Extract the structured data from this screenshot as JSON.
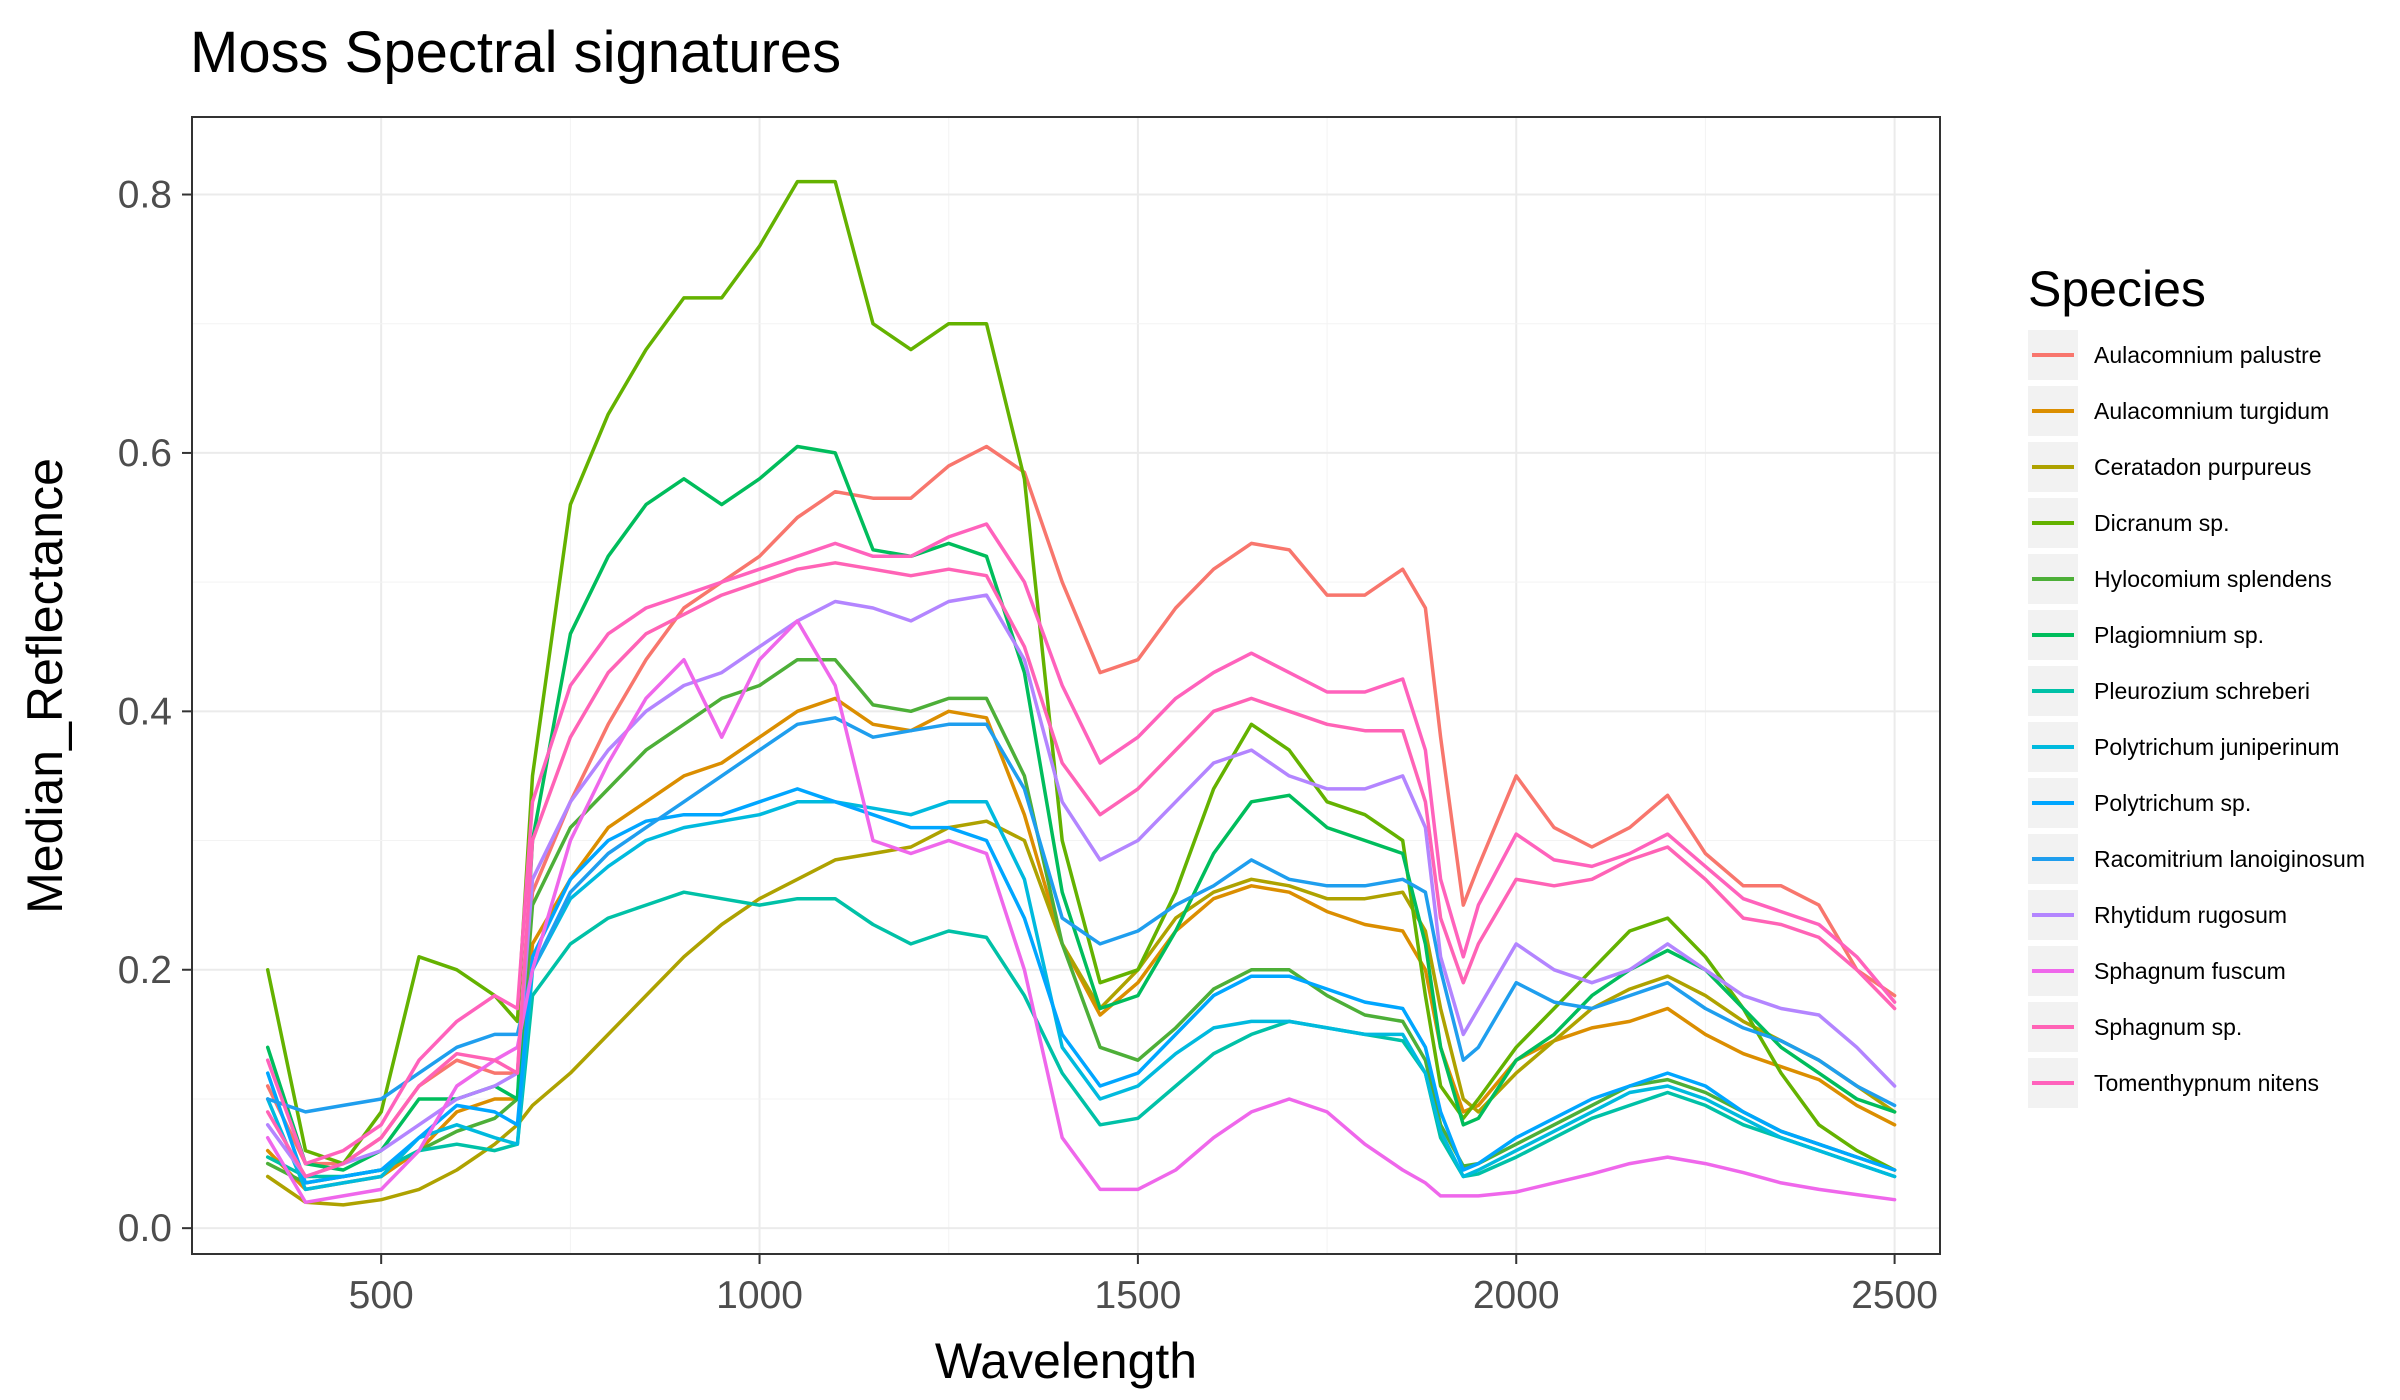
{
  "chart_data": {
    "type": "line",
    "title": "Moss Spectral signatures",
    "xlabel": "Wavelength",
    "ylabel": "Median_Reflectance",
    "xlim": [
      250,
      2560
    ],
    "ylim": [
      -0.02,
      0.86
    ],
    "x_ticks": [
      500,
      1000,
      1500,
      2000,
      2500
    ],
    "y_ticks": [
      0.0,
      0.2,
      0.4,
      0.6,
      0.8
    ],
    "x_tick_labels": [
      "500",
      "1000",
      "1500",
      "2000",
      "2500"
    ],
    "y_tick_labels": [
      "0.0",
      "0.2",
      "0.4",
      "0.6",
      "0.8"
    ],
    "grid": true,
    "legend": {
      "title": "Species",
      "position": "right"
    },
    "x": [
      350,
      400,
      450,
      500,
      550,
      600,
      650,
      680,
      700,
      750,
      800,
      850,
      900,
      950,
      1000,
      1050,
      1100,
      1150,
      1200,
      1250,
      1300,
      1350,
      1400,
      1450,
      1500,
      1550,
      1600,
      1650,
      1700,
      1750,
      1800,
      1850,
      1880,
      1900,
      1930,
      1950,
      2000,
      2050,
      2100,
      2150,
      2200,
      2250,
      2300,
      2350,
      2400,
      2450,
      2500
    ],
    "series": [
      {
        "name": "Aulacomnium palustre",
        "color": "#F8766D",
        "values": [
          0.11,
          0.05,
          0.05,
          0.07,
          0.11,
          0.13,
          0.12,
          0.12,
          0.26,
          0.33,
          0.39,
          0.44,
          0.48,
          0.5,
          0.52,
          0.55,
          0.57,
          0.565,
          0.565,
          0.59,
          0.605,
          0.585,
          0.5,
          0.43,
          0.44,
          0.48,
          0.51,
          0.53,
          0.525,
          0.49,
          0.49,
          0.51,
          0.48,
          0.38,
          0.25,
          0.28,
          0.35,
          0.31,
          0.295,
          0.31,
          0.335,
          0.29,
          0.265,
          0.265,
          0.25,
          0.2,
          0.18
        ]
      },
      {
        "name": "Aulacomnium turgidum",
        "color": "#DB8E00",
        "values": [
          0.06,
          0.03,
          0.035,
          0.04,
          0.06,
          0.09,
          0.1,
          0.1,
          0.22,
          0.27,
          0.31,
          0.33,
          0.35,
          0.36,
          0.38,
          0.4,
          0.41,
          0.39,
          0.385,
          0.4,
          0.395,
          0.32,
          0.22,
          0.165,
          0.19,
          0.23,
          0.255,
          0.265,
          0.26,
          0.245,
          0.235,
          0.23,
          0.2,
          0.14,
          0.09,
          0.095,
          0.13,
          0.145,
          0.155,
          0.16,
          0.17,
          0.15,
          0.135,
          0.125,
          0.115,
          0.095,
          0.08
        ]
      },
      {
        "name": "Ceratadon purpureus",
        "color": "#AEA200",
        "values": [
          0.04,
          0.02,
          0.018,
          0.022,
          0.03,
          0.045,
          0.065,
          0.08,
          0.095,
          0.12,
          0.15,
          0.18,
          0.21,
          0.235,
          0.255,
          0.27,
          0.285,
          0.29,
          0.295,
          0.31,
          0.315,
          0.3,
          0.22,
          0.17,
          0.2,
          0.24,
          0.26,
          0.27,
          0.265,
          0.255,
          0.255,
          0.26,
          0.23,
          0.17,
          0.1,
          0.09,
          0.12,
          0.145,
          0.17,
          0.185,
          0.195,
          0.18,
          0.16,
          0.145,
          0.13,
          0.11,
          0.09
        ]
      },
      {
        "name": "Dicranum sp.",
        "color": "#64B200",
        "values": [
          0.2,
          0.06,
          0.05,
          0.09,
          0.21,
          0.2,
          0.18,
          0.16,
          0.35,
          0.56,
          0.63,
          0.68,
          0.72,
          0.72,
          0.76,
          0.81,
          0.81,
          0.7,
          0.68,
          0.7,
          0.7,
          0.58,
          0.3,
          0.19,
          0.2,
          0.26,
          0.34,
          0.39,
          0.37,
          0.33,
          0.32,
          0.3,
          0.18,
          0.11,
          0.085,
          0.1,
          0.14,
          0.17,
          0.2,
          0.23,
          0.24,
          0.21,
          0.17,
          0.12,
          0.08,
          0.06,
          0.045
        ]
      },
      {
        "name": "Hylocomium splendens",
        "color": "#4DAF38",
        "values": [
          0.05,
          0.035,
          0.04,
          0.045,
          0.06,
          0.075,
          0.085,
          0.1,
          0.25,
          0.31,
          0.34,
          0.37,
          0.39,
          0.41,
          0.42,
          0.44,
          0.44,
          0.405,
          0.4,
          0.41,
          0.41,
          0.35,
          0.22,
          0.14,
          0.13,
          0.155,
          0.185,
          0.2,
          0.2,
          0.18,
          0.165,
          0.16,
          0.13,
          0.08,
          0.048,
          0.05,
          0.065,
          0.08,
          0.095,
          0.11,
          0.115,
          0.105,
          0.09,
          0.075,
          0.065,
          0.055,
          0.045
        ]
      },
      {
        "name": "Plagiomnium sp.",
        "color": "#00BD5C",
        "values": [
          0.14,
          0.05,
          0.045,
          0.06,
          0.1,
          0.1,
          0.11,
          0.1,
          0.3,
          0.46,
          0.52,
          0.56,
          0.58,
          0.56,
          0.58,
          0.605,
          0.6,
          0.525,
          0.52,
          0.53,
          0.52,
          0.43,
          0.26,
          0.17,
          0.18,
          0.23,
          0.29,
          0.33,
          0.335,
          0.31,
          0.3,
          0.29,
          0.22,
          0.14,
          0.08,
          0.085,
          0.13,
          0.15,
          0.18,
          0.2,
          0.215,
          0.2,
          0.17,
          0.14,
          0.12,
          0.1,
          0.09
        ]
      },
      {
        "name": "Pleurozium schreberi",
        "color": "#00C1A7",
        "values": [
          0.055,
          0.04,
          0.04,
          0.045,
          0.06,
          0.065,
          0.06,
          0.065,
          0.18,
          0.22,
          0.24,
          0.25,
          0.26,
          0.255,
          0.25,
          0.255,
          0.255,
          0.235,
          0.22,
          0.23,
          0.225,
          0.18,
          0.12,
          0.08,
          0.085,
          0.11,
          0.135,
          0.15,
          0.16,
          0.155,
          0.15,
          0.145,
          0.12,
          0.07,
          0.04,
          0.042,
          0.055,
          0.07,
          0.085,
          0.095,
          0.105,
          0.095,
          0.08,
          0.07,
          0.06,
          0.05,
          0.04
        ]
      },
      {
        "name": "Polytrichum juniperinum",
        "color": "#00BADE",
        "values": [
          0.1,
          0.03,
          0.035,
          0.04,
          0.07,
          0.08,
          0.07,
          0.065,
          0.2,
          0.255,
          0.28,
          0.3,
          0.31,
          0.315,
          0.32,
          0.33,
          0.33,
          0.325,
          0.32,
          0.33,
          0.33,
          0.27,
          0.14,
          0.1,
          0.11,
          0.135,
          0.155,
          0.16,
          0.16,
          0.155,
          0.15,
          0.15,
          0.12,
          0.075,
          0.04,
          0.045,
          0.06,
          0.075,
          0.09,
          0.105,
          0.11,
          0.1,
          0.085,
          0.07,
          0.06,
          0.05,
          0.04
        ]
      },
      {
        "name": "Polytrichum sp.",
        "color": "#00A6FF",
        "values": [
          0.12,
          0.035,
          0.04,
          0.045,
          0.07,
          0.095,
          0.09,
          0.08,
          0.21,
          0.27,
          0.3,
          0.315,
          0.32,
          0.32,
          0.33,
          0.34,
          0.33,
          0.32,
          0.31,
          0.31,
          0.3,
          0.24,
          0.15,
          0.11,
          0.12,
          0.15,
          0.18,
          0.195,
          0.195,
          0.185,
          0.175,
          0.17,
          0.14,
          0.09,
          0.045,
          0.05,
          0.07,
          0.085,
          0.1,
          0.11,
          0.12,
          0.11,
          0.09,
          0.075,
          0.065,
          0.055,
          0.045
        ]
      },
      {
        "name": "Racomitrium lanoiginosum",
        "color": "#1F9EEE",
        "values": [
          0.1,
          0.09,
          0.095,
          0.1,
          0.12,
          0.14,
          0.15,
          0.15,
          0.2,
          0.26,
          0.29,
          0.31,
          0.33,
          0.35,
          0.37,
          0.39,
          0.395,
          0.38,
          0.385,
          0.39,
          0.39,
          0.34,
          0.24,
          0.22,
          0.23,
          0.25,
          0.265,
          0.285,
          0.27,
          0.265,
          0.265,
          0.27,
          0.26,
          0.2,
          0.13,
          0.14,
          0.19,
          0.175,
          0.17,
          0.18,
          0.19,
          0.17,
          0.155,
          0.145,
          0.13,
          0.11,
          0.095
        ]
      },
      {
        "name": "Rhytidum rugosum",
        "color": "#B385FF",
        "values": [
          0.08,
          0.04,
          0.05,
          0.06,
          0.08,
          0.1,
          0.11,
          0.12,
          0.27,
          0.33,
          0.37,
          0.4,
          0.42,
          0.43,
          0.45,
          0.47,
          0.485,
          0.48,
          0.47,
          0.485,
          0.49,
          0.44,
          0.33,
          0.285,
          0.3,
          0.33,
          0.36,
          0.37,
          0.35,
          0.34,
          0.34,
          0.35,
          0.31,
          0.21,
          0.15,
          0.17,
          0.22,
          0.2,
          0.19,
          0.2,
          0.22,
          0.2,
          0.18,
          0.17,
          0.165,
          0.14,
          0.11
        ]
      },
      {
        "name": "Sphagnum fuscum",
        "color": "#EF67EB",
        "values": [
          0.07,
          0.02,
          0.025,
          0.03,
          0.06,
          0.11,
          0.13,
          0.14,
          0.2,
          0.3,
          0.36,
          0.41,
          0.44,
          0.38,
          0.44,
          0.47,
          0.42,
          0.3,
          0.29,
          0.3,
          0.29,
          0.2,
          0.07,
          0.03,
          0.03,
          0.045,
          0.07,
          0.09,
          0.1,
          0.09,
          0.065,
          0.045,
          0.035,
          0.025,
          0.025,
          0.025,
          0.028,
          0.035,
          0.042,
          0.05,
          0.055,
          0.05,
          0.043,
          0.035,
          0.03,
          0.026,
          0.022
        ]
      },
      {
        "name": "Sphagnum sp.",
        "color": "#FF63B6",
        "values": [
          0.09,
          0.04,
          0.05,
          0.07,
          0.11,
          0.135,
          0.13,
          0.12,
          0.3,
          0.38,
          0.43,
          0.46,
          0.475,
          0.49,
          0.5,
          0.51,
          0.515,
          0.51,
          0.505,
          0.51,
          0.505,
          0.45,
          0.36,
          0.32,
          0.34,
          0.37,
          0.4,
          0.41,
          0.4,
          0.39,
          0.385,
          0.385,
          0.33,
          0.24,
          0.19,
          0.22,
          0.27,
          0.265,
          0.27,
          0.285,
          0.295,
          0.27,
          0.24,
          0.235,
          0.225,
          0.2,
          0.17
        ]
      },
      {
        "name": "Tomenthypnum nitens",
        "color": "#FF62BC",
        "values": [
          0.13,
          0.05,
          0.06,
          0.08,
          0.13,
          0.16,
          0.18,
          0.17,
          0.33,
          0.42,
          0.46,
          0.48,
          0.49,
          0.5,
          0.51,
          0.52,
          0.53,
          0.52,
          0.52,
          0.535,
          0.545,
          0.5,
          0.42,
          0.36,
          0.38,
          0.41,
          0.43,
          0.445,
          0.43,
          0.415,
          0.415,
          0.425,
          0.37,
          0.27,
          0.21,
          0.25,
          0.305,
          0.285,
          0.28,
          0.29,
          0.305,
          0.28,
          0.255,
          0.245,
          0.235,
          0.21,
          0.175
        ]
      }
    ]
  }
}
